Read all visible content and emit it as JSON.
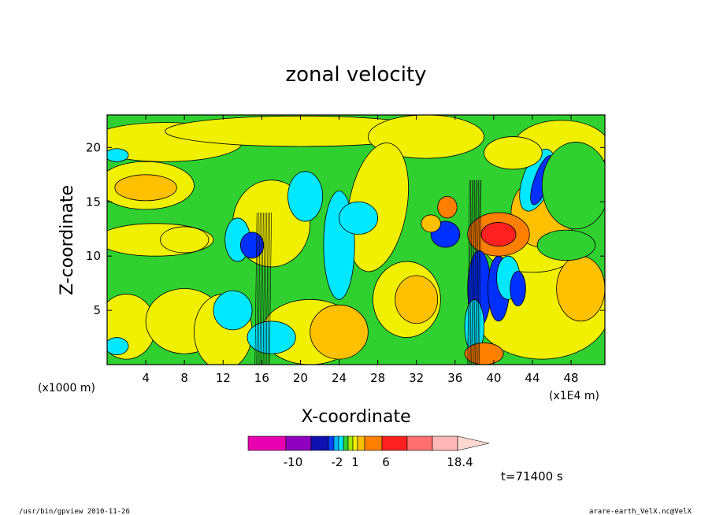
{
  "chart_data": {
    "type": "heatmap",
    "title": "zonal velocity",
    "xlabel": "X-coordinate",
    "ylabel": "Z-coordinate",
    "x_unit_left": "(x1000 m)",
    "x_unit_right": "(x1E4 m)",
    "xticks": [
      "4",
      "8",
      "12",
      "16",
      "20",
      "24",
      "28",
      "32",
      "36",
      "40",
      "44",
      "48"
    ],
    "yticks": [
      "5",
      "10",
      "15",
      "20"
    ],
    "xlim": [
      0,
      51.5
    ],
    "ylim": [
      0,
      23
    ],
    "colorbar": {
      "labels": [
        "-10",
        "-2",
        "1",
        "6",
        "18.4"
      ],
      "colors": [
        "#e800b0",
        "#9000c0",
        "#1010b0",
        "#0040ff",
        "#00b8ff",
        "#00e8ff",
        "#30d030",
        "#a8e800",
        "#f0f000",
        "#ffc000",
        "#ff8000",
        "#ff2020",
        "#ff7070",
        "#ffb8b8"
      ]
    },
    "annotation_time": "t=71400 s",
    "footer_left": "/usr/bin/gpview   2010-11-26",
    "footer_right": "arare-earth_VelX.nc@VelX",
    "palette": {
      "green": "#30d030",
      "yellow": "#f0f000",
      "orange": "#ffc000",
      "deep_orange": "#ff8000",
      "cyan": "#00e8ff",
      "blue": "#0030ff",
      "red": "#ff2020"
    }
  }
}
